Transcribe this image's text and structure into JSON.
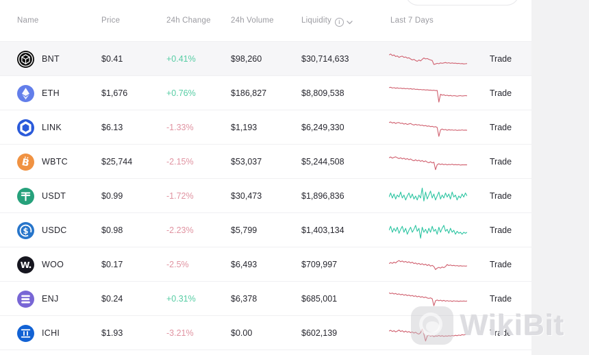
{
  "colors": {
    "page_bg": "#f2f2f3",
    "card_bg": "#ffffff",
    "positive": "#57cda4",
    "negative": "#e093a1",
    "spark_red": "#d05f6e",
    "spark_green": "#2dc5a2",
    "header_text": "#9b9ba1",
    "body_text": "#26262e"
  },
  "search": {
    "value": "",
    "placeholder": ""
  },
  "table": {
    "columns": [
      "Name",
      "Price",
      "24h Change",
      "24h Volume",
      "Liquidity",
      "Last 7 Days"
    ],
    "trade_label": "Trade",
    "rows": [
      {
        "symbol": "BNT",
        "price": "$0.41",
        "change": "+0.41%",
        "direction": "pos",
        "volume": "$98,260",
        "liquidity": "$30,714,633",
        "icon": "bancor",
        "icon_bg": "#0a0a0a",
        "spark_color": "#d05f6e",
        "highlight": true,
        "sparkline": [
          0.3,
          0.25,
          0.33,
          0.3,
          0.38,
          0.35,
          0.42,
          0.38,
          0.36,
          0.42,
          0.4,
          0.46,
          0.44,
          0.5,
          0.55,
          0.52,
          0.58,
          0.62,
          0.55,
          0.6,
          0.52,
          0.45,
          0.5,
          0.48,
          0.52,
          0.55,
          0.58,
          0.78,
          0.75,
          0.72,
          0.74,
          0.7,
          0.72,
          0.7,
          0.68,
          0.71,
          0.69,
          0.72,
          0.7,
          0.72,
          0.71,
          0.73,
          0.72,
          0.74,
          0.73,
          0.75,
          0.74,
          0.73
        ]
      },
      {
        "symbol": "ETH",
        "price": "$1,676",
        "change": "+0.76%",
        "direction": "pos",
        "volume": "$186,827",
        "liquidity": "$8,809,538",
        "icon": "ethereum",
        "icon_bg": "#627eea",
        "spark_color": "#d05f6e",
        "highlight": false,
        "sparkline": [
          0.22,
          0.2,
          0.24,
          0.22,
          0.25,
          0.23,
          0.26,
          0.24,
          0.27,
          0.25,
          0.28,
          0.26,
          0.29,
          0.27,
          0.3,
          0.28,
          0.31,
          0.3,
          0.32,
          0.31,
          0.33,
          0.32,
          0.34,
          0.33,
          0.35,
          0.34,
          0.36,
          0.35,
          0.37,
          0.36,
          0.95,
          0.55,
          0.6,
          0.58,
          0.62,
          0.6,
          0.63,
          0.61,
          0.64,
          0.62,
          0.63,
          0.65,
          0.63,
          0.62,
          0.64,
          0.63,
          0.62,
          0.63
        ]
      },
      {
        "symbol": "LINK",
        "price": "$6.13",
        "change": "-1.33%",
        "direction": "neg",
        "volume": "$1,193",
        "liquidity": "$6,249,330",
        "icon": "chainlink",
        "icon_bg": "#2a5ada",
        "spark_color": "#d05f6e",
        "highlight": false,
        "sparkline": [
          0.25,
          0.22,
          0.28,
          0.24,
          0.3,
          0.26,
          0.25,
          0.3,
          0.28,
          0.33,
          0.3,
          0.35,
          0.32,
          0.3,
          0.35,
          0.38,
          0.34,
          0.38,
          0.36,
          0.4,
          0.38,
          0.42,
          0.4,
          0.44,
          0.42,
          0.46,
          0.44,
          0.48,
          0.46,
          0.5,
          0.95,
          0.62,
          0.58,
          0.62,
          0.6,
          0.64,
          0.61,
          0.63,
          0.62,
          0.64,
          0.62,
          0.65,
          0.63,
          0.64,
          0.62,
          0.64,
          0.63,
          0.64
        ]
      },
      {
        "symbol": "WBTC",
        "price": "$25,744",
        "change": "-2.15%",
        "direction": "neg",
        "volume": "$53,037",
        "liquidity": "$5,244,508",
        "icon": "bitcoin",
        "icon_bg": "#f09242",
        "spark_color": "#d05f6e",
        "highlight": false,
        "sparkline": [
          0.3,
          0.26,
          0.32,
          0.28,
          0.25,
          0.3,
          0.34,
          0.3,
          0.36,
          0.32,
          0.38,
          0.34,
          0.4,
          0.36,
          0.42,
          0.45,
          0.4,
          0.46,
          0.42,
          0.48,
          0.44,
          0.5,
          0.46,
          0.52,
          0.55,
          0.5,
          0.56,
          0.52,
          0.9,
          0.65,
          0.6,
          0.64,
          0.61,
          0.65,
          0.62,
          0.66,
          0.63,
          0.65,
          0.62,
          0.66,
          0.64,
          0.66,
          0.64,
          0.67,
          0.65,
          0.66,
          0.65,
          0.66
        ]
      },
      {
        "symbol": "USDT",
        "price": "$0.99",
        "change": "-1.72%",
        "direction": "neg",
        "volume": "$30,473",
        "liquidity": "$1,896,836",
        "icon": "tether",
        "icon_bg": "#26a17b",
        "spark_color": "#2dc5a2",
        "highlight": false,
        "sparkline": [
          0.55,
          0.35,
          0.6,
          0.4,
          0.65,
          0.45,
          0.55,
          0.3,
          0.6,
          0.45,
          0.7,
          0.5,
          0.35,
          0.6,
          0.4,
          0.65,
          0.5,
          0.7,
          0.45,
          0.6,
          0.1,
          0.75,
          0.3,
          0.65,
          0.45,
          0.25,
          0.6,
          0.4,
          0.7,
          0.5,
          0.3,
          0.65,
          0.45,
          0.6,
          0.35,
          0.55,
          0.4,
          0.65,
          0.3,
          0.55,
          0.45,
          0.7,
          0.5,
          0.6,
          0.4,
          0.55,
          0.35,
          0.5
        ]
      },
      {
        "symbol": "USDC",
        "price": "$0.98",
        "change": "-2.23%",
        "direction": "neg",
        "volume": "$5,799",
        "liquidity": "$1,403,134",
        "icon": "usdc",
        "icon_bg": "#2775ca",
        "spark_color": "#2dc5a2",
        "highlight": false,
        "sparkline": [
          0.5,
          0.3,
          0.6,
          0.4,
          0.55,
          0.35,
          0.65,
          0.45,
          0.3,
          0.6,
          0.4,
          0.7,
          0.5,
          0.35,
          0.6,
          0.45,
          0.25,
          0.55,
          0.4,
          0.9,
          0.35,
          0.6,
          0.45,
          0.65,
          0.4,
          0.6,
          0.3,
          0.55,
          0.45,
          0.7,
          0.35,
          0.6,
          0.4,
          0.25,
          0.55,
          0.45,
          0.65,
          0.4,
          0.6,
          0.5,
          0.7,
          0.55,
          0.65,
          0.6,
          0.7,
          0.6,
          0.65,
          0.6
        ]
      },
      {
        "symbol": "WOO",
        "price": "$0.17",
        "change": "-2.5%",
        "direction": "neg",
        "volume": "$6,493",
        "liquidity": "$709,997",
        "icon": "woo",
        "icon_bg": "#16161f",
        "spark_color": "#d05f6e",
        "highlight": false,
        "sparkline": [
          0.45,
          0.4,
          0.44,
          0.38,
          0.42,
          0.35,
          0.3,
          0.36,
          0.32,
          0.38,
          0.34,
          0.4,
          0.36,
          0.42,
          0.38,
          0.45,
          0.42,
          0.48,
          0.44,
          0.5,
          0.46,
          0.52,
          0.48,
          0.55,
          0.5,
          0.58,
          0.54,
          0.6,
          0.75,
          0.68,
          0.64,
          0.68,
          0.62,
          0.66,
          0.6,
          0.5,
          0.55,
          0.52,
          0.56,
          0.54,
          0.57,
          0.55,
          0.58,
          0.56,
          0.58,
          0.57,
          0.58,
          0.57
        ]
      },
      {
        "symbol": "ENJ",
        "price": "$0.24",
        "change": "+0.31%",
        "direction": "pos",
        "volume": "$6,378",
        "liquidity": "$685,001",
        "icon": "enjin",
        "icon_bg": "#7866d5",
        "spark_color": "#d05f6e",
        "highlight": false,
        "sparkline": [
          0.2,
          0.24,
          0.21,
          0.26,
          0.23,
          0.28,
          0.25,
          0.3,
          0.27,
          0.32,
          0.29,
          0.34,
          0.31,
          0.36,
          0.33,
          0.38,
          0.35,
          0.4,
          0.37,
          0.42,
          0.39,
          0.44,
          0.41,
          0.46,
          0.48,
          0.45,
          0.5,
          0.85,
          0.6,
          0.56,
          0.6,
          0.57,
          0.61,
          0.58,
          0.62,
          0.59,
          0.62,
          0.6,
          0.63,
          0.6,
          0.62,
          0.61,
          0.63,
          0.61,
          0.62,
          0.61,
          0.62,
          0.61
        ]
      },
      {
        "symbol": "ICHI",
        "price": "$1.93",
        "change": "-3.21%",
        "direction": "neg",
        "volume": "$0.00",
        "liquidity": "$602,139",
        "icon": "ichi",
        "icon_bg": "#1262d4",
        "spark_color": "#d05f6e",
        "highlight": false,
        "sparkline": [
          0.4,
          0.36,
          0.42,
          0.38,
          0.44,
          0.4,
          0.35,
          0.42,
          0.38,
          0.45,
          0.4,
          0.46,
          0.42,
          0.48,
          0.44,
          0.5,
          0.46,
          0.52,
          0.55,
          0.48,
          0.3,
          0.55,
          0.9,
          0.65,
          0.6,
          0.66,
          0.62,
          0.68,
          0.64,
          0.66,
          0.62,
          0.66,
          0.63,
          0.67,
          0.64,
          0.66,
          0.63,
          0.65,
          0.62,
          0.64,
          0.61,
          0.63,
          0.6,
          0.62,
          0.58,
          0.6,
          0.57,
          0.55
        ]
      }
    ]
  },
  "watermark": {
    "text": "WikiBit"
  }
}
